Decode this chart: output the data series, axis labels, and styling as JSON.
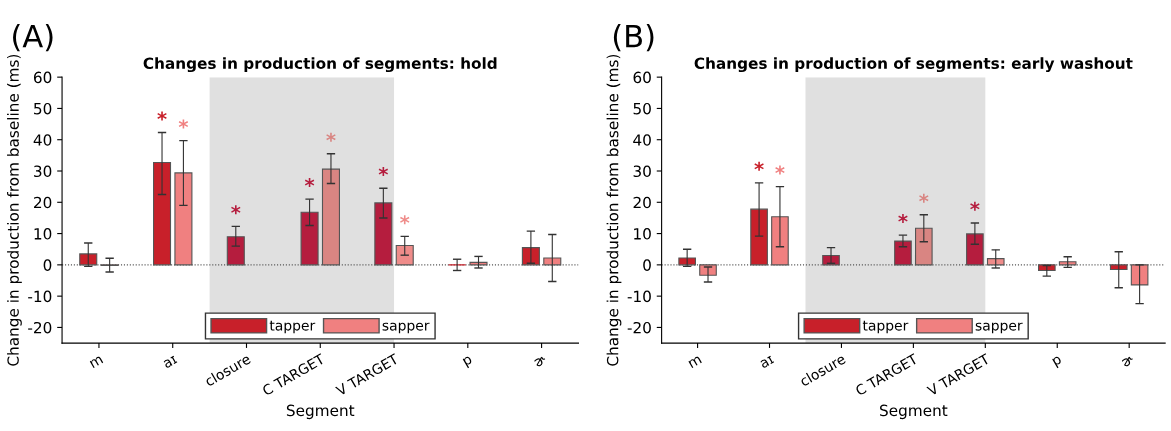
{
  "chart_data": [
    {
      "type": "bar",
      "title": "Changes in production of segments: hold",
      "xlabel": "Segment",
      "ylabel": "Change in production from baseline (ms)",
      "annotations": [
        "(A)"
      ],
      "categories": [
        "m",
        "aɪ",
        "closure",
        "C TARGET",
        "V TARGET",
        "p",
        "ɚ"
      ],
      "series": [
        {
          "name": "tapper",
          "color": "#c8202a",
          "colors": [
            "#c8202a",
            "#c8202a",
            "#b51d3e",
            "#b51d3e",
            "#b51d3e",
            "#c8202a",
            "#c8202a"
          ],
          "values": [
            3.5,
            32.7,
            9,
            16.8,
            19.8,
            0,
            5.5
          ],
          "errors": [
            [
              -0.5,
              7
            ],
            [
              22.5,
              42.3
            ],
            [
              6,
              12.3
            ],
            [
              12.6,
              21
            ],
            [
              15,
              24.5
            ],
            [
              -1.8,
              1.8
            ],
            [
              0.5,
              10.8
            ]
          ],
          "value_labels": [
            null,
            "*",
            "*",
            "*",
            "*",
            null,
            null
          ]
        },
        {
          "name": "sapper",
          "color": "#f08080",
          "colors": [
            "#f08080",
            "#f08080",
            "#f08080",
            "#d98582",
            "#ef8c8a",
            "#f08080",
            "#f08080"
          ],
          "values": [
            -0.2,
            29.4,
            null,
            30.6,
            6.2,
            0.8,
            2.2
          ],
          "errors": [
            [
              -2.3,
              2.1
            ],
            [
              19,
              39.7
            ],
            null,
            [
              26,
              35.5
            ],
            [
              3.1,
              9.1
            ],
            [
              -1,
              2.7
            ],
            [
              -5.3,
              9.7
            ]
          ],
          "value_labels": [
            null,
            "*",
            null,
            "*",
            "*",
            null,
            null
          ]
        }
      ],
      "ylim": [
        -25,
        60
      ],
      "yticks": [
        -20,
        -10,
        0,
        10,
        20,
        30,
        40,
        50,
        60
      ],
      "ref_lines": [
        {
          "axis": "y",
          "value": 0,
          "color": "#555555",
          "line_style": "dotted"
        }
      ],
      "legend": "bottom",
      "grid": false
    },
    {
      "type": "bar",
      "title": "Changes in production of segments: early washout",
      "xlabel": "Segment",
      "ylabel": "Change in production from baseline (ms)",
      "annotations": [
        "(B)"
      ],
      "categories": [
        "m",
        "aɪ",
        "closure",
        "C TARGET",
        "V TARGET",
        "p",
        "ɚ"
      ],
      "series": [
        {
          "name": "tapper",
          "color": "#c8202a",
          "colors": [
            "#c8202a",
            "#c8202a",
            "#b51d3e",
            "#b51d3e",
            "#b51d3e",
            "#c8202a",
            "#c8202a"
          ],
          "values": [
            2.2,
            17.8,
            3,
            7.6,
            9.9,
            -1.8,
            -1.5
          ],
          "errors": [
            [
              -0.5,
              5
            ],
            [
              9.2,
              26.2
            ],
            [
              0.5,
              5.5
            ],
            [
              5.8,
              9.5
            ],
            [
              6.6,
              13.4
            ],
            [
              -3.6,
              -0.2
            ],
            [
              -7.3,
              4.2
            ]
          ],
          "value_labels": [
            null,
            "*",
            null,
            "*",
            "*",
            null,
            null
          ]
        },
        {
          "name": "sapper",
          "color": "#f08080",
          "colors": [
            "#f08080",
            "#f08080",
            "#f08080",
            "#d98582",
            "#ef8c8a",
            "#f08080",
            "#f08080"
          ],
          "values": [
            -3.3,
            15.4,
            null,
            11.7,
            2,
            1,
            -6.4
          ],
          "errors": [
            [
              -5.5,
              -0.7
            ],
            [
              5.8,
              25
            ],
            null,
            [
              7.4,
              16
            ],
            [
              -1,
              4.8
            ],
            [
              -0.8,
              2.6
            ],
            [
              -12.4,
              0
            ]
          ],
          "value_labels": [
            null,
            "*",
            null,
            "*",
            null,
            null,
            null
          ]
        }
      ],
      "ylim": [
        -25,
        60
      ],
      "yticks": [
        -20,
        -10,
        0,
        10,
        20,
        30,
        40,
        50,
        60
      ],
      "ref_lines": [
        {
          "axis": "y",
          "value": 0,
          "color": "#555555",
          "line_style": "dotted"
        }
      ],
      "legend": "bottom",
      "grid": false
    }
  ]
}
